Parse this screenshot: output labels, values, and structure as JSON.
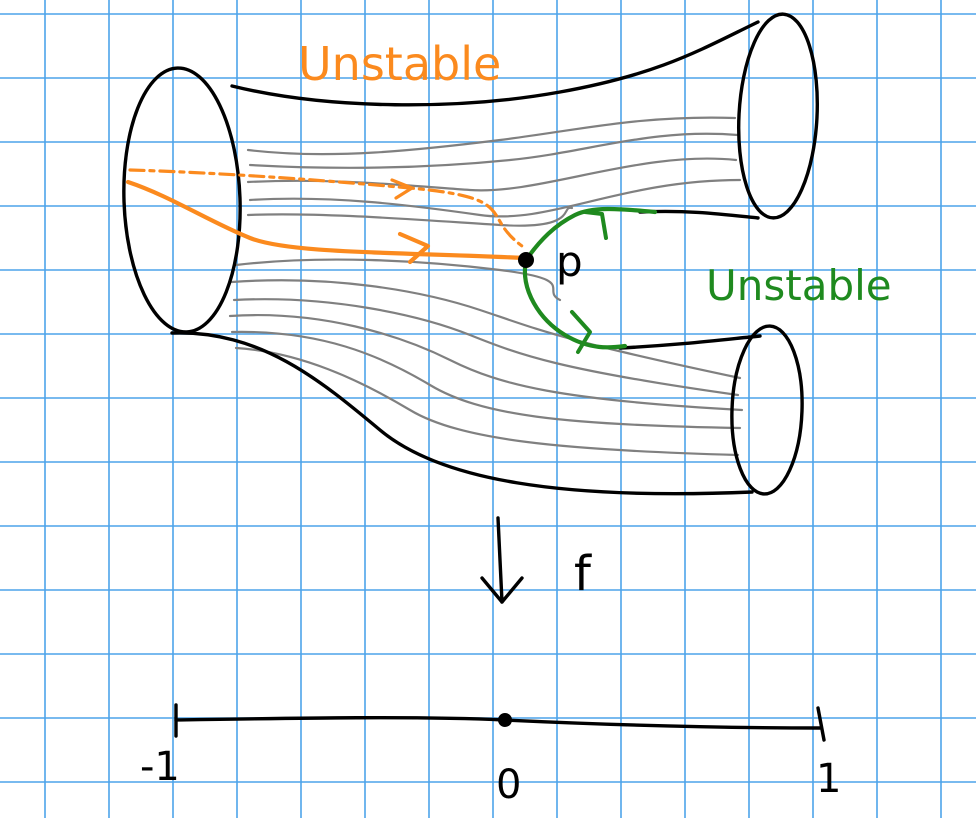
{
  "labels": {
    "unstable_top": "Unstable",
    "unstable_right": "Unstable",
    "point": "p",
    "map": "f",
    "tick_left": "-1",
    "tick_mid": "0",
    "tick_right": "1"
  },
  "colors": {
    "grid": "#4da3ea",
    "ink": "#000000",
    "flow": "#808080",
    "orange": "#fb8a1e",
    "green": "#1f8a1f",
    "paper": "#ffffff"
  }
}
